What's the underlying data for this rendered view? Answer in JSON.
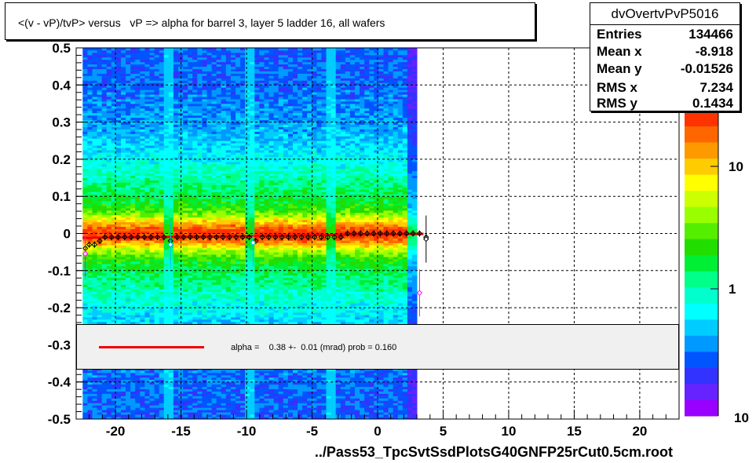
{
  "title": "<(v - vP)/tvP> versus   vP => alpha for barrel 3, layer 5 ladder 16, all wafers",
  "stats": {
    "name": "dvOvertvPvP5016",
    "rows": [
      {
        "label": "Entries",
        "value": "134466"
      },
      {
        "label": "Mean x",
        "value": "-8.918"
      },
      {
        "label": "Mean y",
        "value": "-0.01526"
      },
      {
        "label": "RMS x",
        "value": "7.234"
      },
      {
        "label": "RMS y",
        "value": "0.1434"
      }
    ]
  },
  "fit": {
    "label": "alpha =    0.38 +-  0.01 (mrad) prob = 0.160",
    "color": "#ee0000"
  },
  "x_axis_title": "../Pass53_TpcSvtSsdPlotsG40GNFP25rCut0.5cm.root",
  "chart_data": {
    "type": "heatmap",
    "xlim": [
      -23,
      23
    ],
    "ylim": [
      -0.5,
      0.5
    ],
    "x_ticks": [
      -20,
      -15,
      -10,
      -5,
      0,
      5,
      10,
      15,
      20
    ],
    "x_tick_labels": [
      "-20",
      "-15",
      "-10",
      "-5",
      "0",
      "5",
      "10",
      "15",
      "20"
    ],
    "y_ticks": [
      -0.5,
      -0.4,
      -0.3,
      -0.2,
      -0.1,
      0,
      0.1,
      0.2,
      0.3,
      0.4,
      0.5
    ],
    "y_tick_labels": [
      "-0.5",
      "-0.4",
      "-0.3",
      "-0.2",
      "-0.1",
      "0",
      "0.1",
      "0.2",
      "0.3",
      "0.4",
      "0.5"
    ],
    "grid": true,
    "data_x_range": [
      -22.5,
      3
    ],
    "color_scale": {
      "log": true,
      "tick_labels": [
        "1",
        "10"
      ],
      "corner_label": "10",
      "colors": [
        "#9900ff",
        "#6622ff",
        "#3333ff",
        "#0055ff",
        "#0099ff",
        "#00ccff",
        "#00ffff",
        "#00ffcc",
        "#00ff88",
        "#00ee33",
        "#22dd00",
        "#55ee00",
        "#99ff00",
        "#ccff00",
        "#ffff00",
        "#ffcc00",
        "#ff9900",
        "#ff6600",
        "#ff3300"
      ]
    },
    "fit_line": {
      "x": [
        -22.5,
        3.5
      ],
      "y": [
        -0.012,
        -0.001
      ],
      "color": "#ee0000"
    },
    "profile_points": {
      "x": [
        -22.3,
        -22.0,
        -21.6,
        -21.2,
        -20.8,
        -20.3,
        -19.8,
        -19.3,
        -18.8,
        -18.3,
        -17.8,
        -17.3,
        -16.8,
        -16.3,
        -15.8,
        -15.3,
        -14.8,
        -14.3,
        -13.8,
        -13.3,
        -12.8,
        -12.3,
        -11.8,
        -11.3,
        -10.8,
        -10.3,
        -9.8,
        -9.3,
        -8.8,
        -8.3,
        -7.8,
        -7.3,
        -6.8,
        -6.3,
        -5.8,
        -5.3,
        -4.8,
        -4.3,
        -3.8,
        -3.3,
        -2.8,
        -2.3,
        -1.8,
        -1.3,
        -0.8,
        -0.3,
        0.2,
        0.7,
        1.2,
        1.7,
        2.2,
        2.7,
        3.2,
        3.7
      ],
      "y": [
        -0.04,
        -0.03,
        -0.03,
        -0.02,
        -0.01,
        -0.01,
        -0.01,
        -0.01,
        -0.01,
        -0.01,
        -0.01,
        -0.01,
        -0.01,
        -0.01,
        -0.02,
        -0.01,
        -0.01,
        -0.01,
        -0.01,
        -0.01,
        -0.01,
        -0.01,
        -0.01,
        -0.01,
        -0.01,
        -0.01,
        -0.01,
        -0.02,
        -0.01,
        -0.01,
        -0.01,
        -0.01,
        -0.01,
        -0.01,
        -0.01,
        -0.01,
        -0.01,
        -0.01,
        -0.01,
        -0.01,
        -0.01,
        0.0,
        0.0,
        0.0,
        0.0,
        0.0,
        0.0,
        0.0,
        0.0,
        0.0,
        0.0,
        0.0,
        0.0,
        -0.01
      ],
      "outliers": [
        {
          "x": -22.3,
          "y": -0.055,
          "color": "#ff00ff"
        },
        {
          "x": -15.8,
          "y": -0.03,
          "color": "#00bbff"
        },
        {
          "x": -9.5,
          "y": -0.025,
          "color": "#00bbff"
        },
        {
          "x": 3.2,
          "y": -0.16,
          "color": "#ff00ff"
        },
        {
          "x": 3.7,
          "y": -0.015,
          "color": "#000000"
        }
      ]
    }
  }
}
